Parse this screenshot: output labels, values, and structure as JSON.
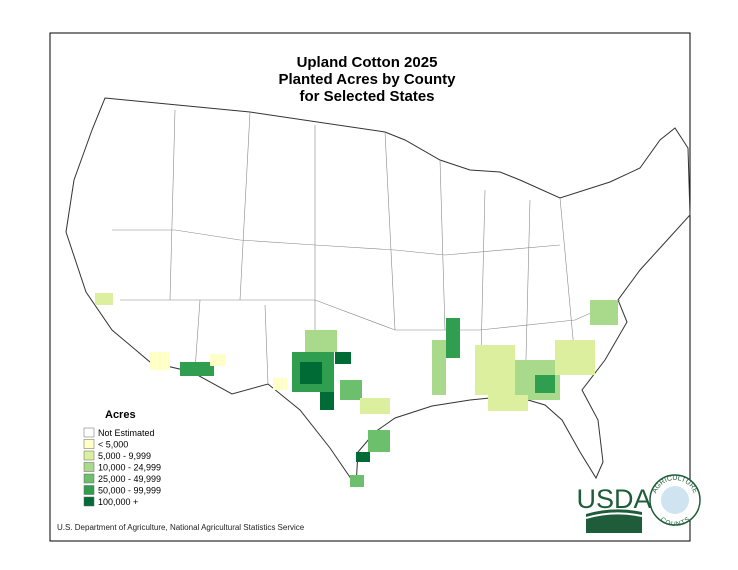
{
  "map": {
    "title": [
      "Upland Cotton 2025",
      "Planted Acres by County",
      "for Selected States"
    ],
    "legend": {
      "title": "Acres",
      "items": [
        {
          "label": "Not Estimated",
          "color": "#ffffff"
        },
        {
          "label": "< 5,000",
          "color": "#ffffc8"
        },
        {
          "label": "5,000 - 9,999",
          "color": "#dbef9f"
        },
        {
          "label": "10,000 - 24,999",
          "color": "#a9d98a"
        },
        {
          "label": "25,000 - 49,999",
          "color": "#6cbf6c"
        },
        {
          "label": "50,000 - 99,999",
          "color": "#2f9e4f"
        },
        {
          "label": "100,000 +",
          "color": "#006b35"
        }
      ]
    },
    "source": "U.S. Department of Agriculture, National Agricultural Statistics Service",
    "logo": {
      "agency": "USDA",
      "ring_top": "AGRICULTURE",
      "ring_bottom": "COUNTS"
    }
  }
}
